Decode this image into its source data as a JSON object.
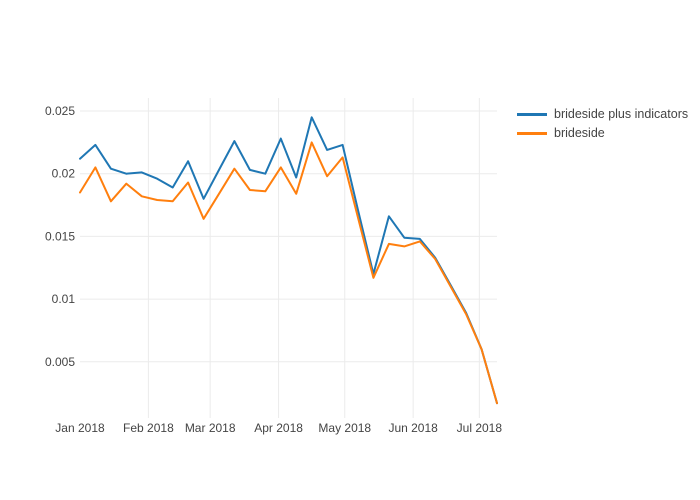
{
  "chart_data": {
    "type": "line",
    "title": "",
    "xlabel": "",
    "ylabel": "",
    "grid": true,
    "background_color": "#ffffff",
    "grid_color": "#ebebeb",
    "tick_color": "#444444",
    "legend_position": "right-outside-top",
    "x": [
      "2018-01-01",
      "2018-01-08",
      "2018-01-15",
      "2018-01-22",
      "2018-01-29",
      "2018-02-05",
      "2018-02-12",
      "2018-02-19",
      "2018-02-26",
      "2018-03-05",
      "2018-03-12",
      "2018-03-19",
      "2018-03-26",
      "2018-04-02",
      "2018-04-09",
      "2018-04-16",
      "2018-04-23",
      "2018-04-30",
      "2018-05-07",
      "2018-05-14",
      "2018-05-21",
      "2018-05-28",
      "2018-06-04",
      "2018-06-11",
      "2018-06-18",
      "2018-06-25",
      "2018-07-02",
      "2018-07-09"
    ],
    "series": [
      {
        "name": "brideside plus indicators",
        "color": "#1f77b4",
        "values": [
          0.0212,
          0.0223,
          0.0204,
          0.02,
          0.0201,
          0.0196,
          0.0189,
          0.021,
          0.018,
          0.0203,
          0.0226,
          0.0203,
          0.02,
          0.0228,
          0.0197,
          0.0245,
          0.0219,
          0.0223,
          0.0171,
          0.012,
          0.0166,
          0.0149,
          0.0148,
          0.0133,
          0.0111,
          0.0089,
          0.006,
          0.0017
        ]
      },
      {
        "name": "brideside",
        "color": "#ff7f0e",
        "values": [
          0.0185,
          0.0205,
          0.0178,
          0.0192,
          0.0182,
          0.0179,
          0.0178,
          0.0193,
          0.0164,
          0.0184,
          0.0204,
          0.0187,
          0.0186,
          0.0205,
          0.0184,
          0.0225,
          0.0198,
          0.0213,
          0.0165,
          0.0117,
          0.0144,
          0.0142,
          0.0146,
          0.0132,
          0.011,
          0.0088,
          0.006,
          0.0017
        ]
      }
    ],
    "xticks": [
      {
        "label": "Jan 2018",
        "date": "2018-01-01"
      },
      {
        "label": "Feb 2018",
        "date": "2018-02-01"
      },
      {
        "label": "Mar 2018",
        "date": "2018-03-01"
      },
      {
        "label": "Apr 2018",
        "date": "2018-04-01"
      },
      {
        "label": "May 2018",
        "date": "2018-05-01"
      },
      {
        "label": "Jun 2018",
        "date": "2018-06-01"
      },
      {
        "label": "Jul 2018",
        "date": "2018-07-01"
      }
    ],
    "yticks": [
      {
        "label": "0.005",
        "value": 0.005
      },
      {
        "label": "0.01",
        "value": 0.01
      },
      {
        "label": "0.015",
        "value": 0.015
      },
      {
        "label": "0.02",
        "value": 0.02
      },
      {
        "label": "0.025",
        "value": 0.025
      }
    ],
    "xlim": [
      "2018-01-01",
      "2018-07-09"
    ],
    "ylim": [
      0.0004,
      0.0259
    ]
  }
}
